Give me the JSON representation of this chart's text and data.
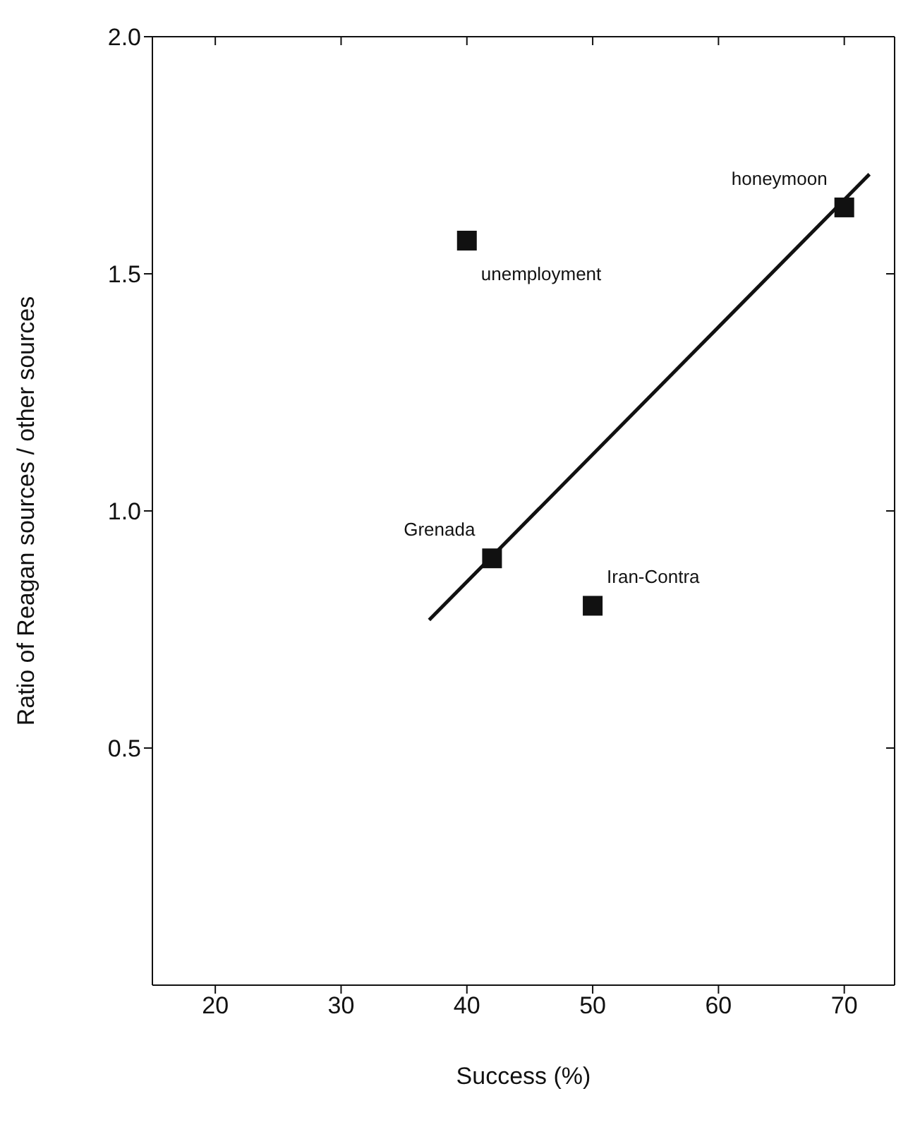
{
  "chart_data": {
    "type": "scatter",
    "xlabel": "Success (%)",
    "ylabel": "Ratio of Reagan sources / other sources",
    "xlim": [
      15,
      74
    ],
    "xticks": [
      20,
      30,
      40,
      50,
      60,
      70
    ],
    "ylim": [
      0,
      2.0
    ],
    "yticks": [
      0.5,
      {
        "value": 1,
        "label": "1.0"
      },
      1.5,
      {
        "value": 2,
        "label": "2.0"
      }
    ],
    "grid": false,
    "marker": "square",
    "legend": false,
    "series": [
      {
        "color": "#111111",
        "x": [
          40,
          42,
          50,
          70
        ],
        "values": [
          1.57,
          0.9,
          0.8,
          1.64
        ]
      },
      {
        "type": "line",
        "color": "#111111",
        "marker": "none",
        "x": [
          37,
          72
        ],
        "values": [
          0.77,
          1.71
        ]
      }
    ],
    "annotations": [
      {
        "text": "unemployment",
        "x": 40,
        "y": 1.57
      },
      {
        "text": "Grenada",
        "x": 42,
        "y": 0.9
      },
      {
        "text": "Iran-Contra",
        "x": 50,
        "y": 0.8
      },
      {
        "text": "honeymoon",
        "x": 70,
        "y": 1.64
      }
    ]
  }
}
